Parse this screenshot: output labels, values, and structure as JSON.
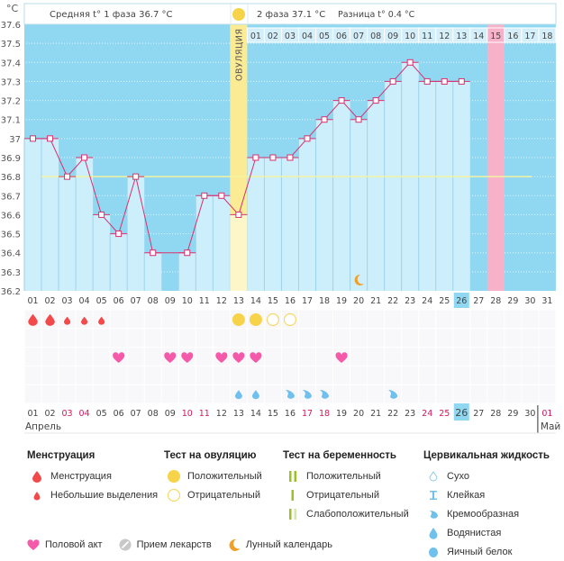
{
  "chart_data": {
    "type": "bar",
    "title": "",
    "ylabel": "°C",
    "ylim": [
      36.2,
      37.6
    ],
    "yticks": [
      "37.6",
      "37.5",
      "37.4",
      "37.3",
      "37.2",
      "37.1",
      "37",
      "36.9",
      "36.8",
      "36.7",
      "36.6",
      "36.5",
      "36.4",
      "36.3",
      "36.2"
    ],
    "days": [
      "01",
      "02",
      "03",
      "04",
      "05",
      "06",
      "07",
      "08",
      "09",
      "10",
      "11",
      "12",
      "13",
      "14",
      "15",
      "16",
      "17",
      "18",
      "19",
      "20",
      "21",
      "22",
      "23",
      "24",
      "25",
      "26",
      "27",
      "28",
      "29",
      "30",
      "31"
    ],
    "temperatures": [
      37.0,
      37.0,
      36.8,
      36.9,
      36.6,
      36.5,
      36.8,
      36.4,
      null,
      36.4,
      36.7,
      36.7,
      36.6,
      36.9,
      36.9,
      36.9,
      37.0,
      37.1,
      37.2,
      37.1,
      37.2,
      37.3,
      37.4,
      37.3,
      37.3,
      37.3,
      null,
      null,
      null,
      null,
      null
    ],
    "coverline": 36.8,
    "ovulation_day": 13,
    "ovulation_label": "ОВУЛЯЦИЯ",
    "today_day": 26,
    "highlight_phase2_day": 15,
    "phase2_labels": [
      "01",
      "02",
      "03",
      "04",
      "05",
      "06",
      "07",
      "08",
      "09",
      "10",
      "11",
      "12",
      "13",
      "14",
      "15",
      "16",
      "17",
      "18"
    ],
    "phase2_start_day": 14,
    "header": {
      "phase1": "Средняя t° 1 фаза 36.7 °C",
      "phase2": "2 фаза 37.1 °C",
      "difference": "Разница t° 0.4 °C"
    },
    "moon_day": 20,
    "events": {
      "menstruation_heavy": [
        1,
        2
      ],
      "menstruation_light": [
        3,
        4,
        5
      ],
      "ovulation_test_positive": [
        13,
        14
      ],
      "ovulation_test_negative": [
        15,
        16
      ],
      "intercourse": [
        6,
        9,
        10,
        12,
        13,
        14,
        19
      ],
      "fluid_watery": [
        13,
        14
      ],
      "fluid_creamy": [
        16,
        17,
        18,
        22
      ]
    },
    "bottom_dates": [
      "01",
      "02",
      "03",
      "04",
      "05",
      "06",
      "07",
      "08",
      "09",
      "10",
      "11",
      "12",
      "13",
      "14",
      "15",
      "16",
      "17",
      "18",
      "19",
      "20",
      "21",
      "22",
      "23",
      "24",
      "25",
      "26",
      "27",
      "28",
      "29",
      "30",
      "01"
    ],
    "bottom_weekend_days": [
      3,
      4,
      10,
      11,
      17,
      18,
      24,
      25,
      31
    ],
    "month_start": "Апрель",
    "month_next": "Май"
  },
  "legend": {
    "menstruation": {
      "title": "Менструация",
      "items": [
        "Менструация",
        "Небольшие выделения"
      ]
    },
    "ovulation_test": {
      "title": "Тест на овуляцию",
      "items": [
        "Положительный",
        "Отрицательный"
      ]
    },
    "pregnancy_test": {
      "title": "Тест на беременность",
      "items": [
        "Положительный",
        "Отрицательный",
        "Слабоположительный"
      ]
    },
    "cervical_fluid": {
      "title": "Цервикальная жидкость",
      "items": [
        "Сухо",
        "Клейкая",
        "Кремообразная",
        "Водянистая",
        "Яичный белок"
      ]
    },
    "bottom": [
      "Половой акт",
      "Прием лекарств",
      "Лунный календарь"
    ]
  },
  "colors": {
    "plot_bg": "#90d8f2",
    "bar": "#cdeefb",
    "line": "#d8306e",
    "ovulation": "#fbeb94",
    "pink_day": "#f7b2c9",
    "coverline": "#f3f3a0",
    "blood": "#f24a4a",
    "heart": "#f55aaa",
    "yellow": "#f7d34a",
    "fluid": "#6fc0ec",
    "moon": "#f0a02a",
    "green": "#9ac02c",
    "weekend": "#d2175a"
  }
}
